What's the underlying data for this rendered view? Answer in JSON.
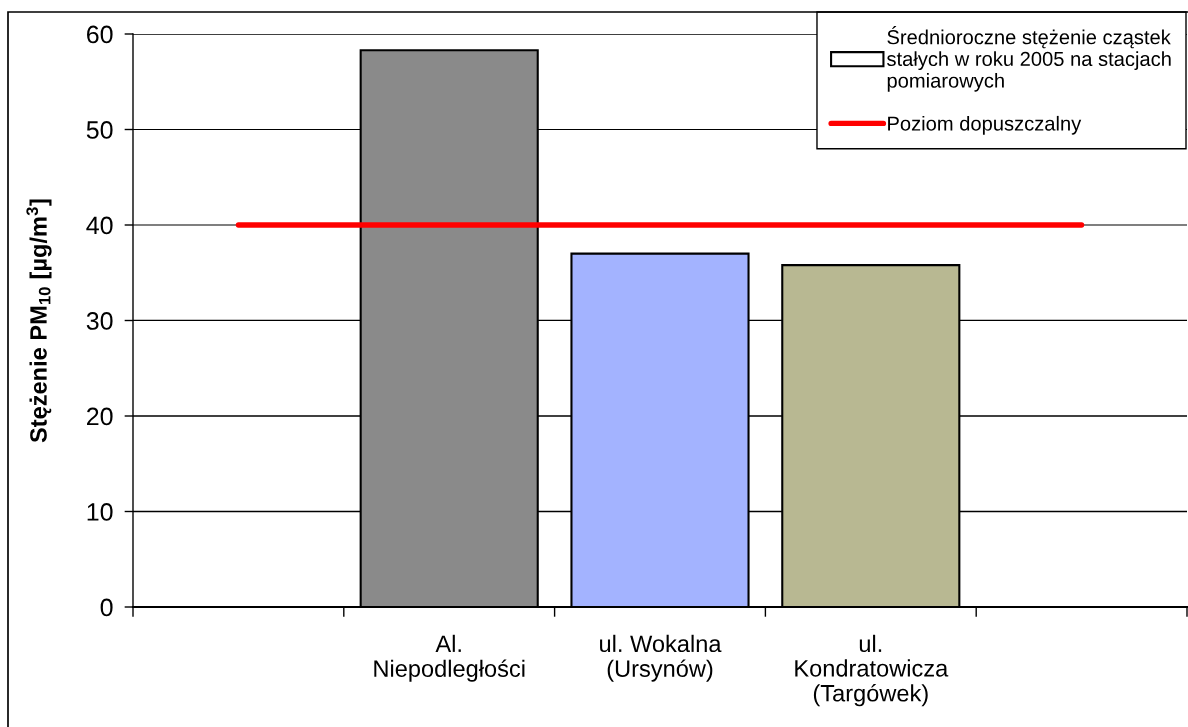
{
  "chart_data": {
    "type": "bar",
    "ylabel": "Stężenie PM$_{10}$ [µg/m$^{3}$]",
    "categories": [
      null,
      "Al.\nNiepodległości",
      "ul. Wokalna\n(Ursynów)",
      "ul.\nKondratowicza\n(Targówek)",
      null
    ],
    "series": [
      {
        "name": "Średnioroczne stężenie cząstek\nstałych w roku 2005 na stacjach\npomiarowych",
        "colors": [
          null,
          "#8a8a8a",
          "#a3b3ff",
          "#b8b892",
          null
        ],
        "values": [
          null,
          58.3,
          37.0,
          35.8,
          null
        ]
      },
      {
        "name": "Poziom dopuszczalny",
        "type": "line",
        "color": "#ff0000",
        "values": [
          40,
          40,
          40,
          40,
          40
        ]
      }
    ],
    "ylim": [
      0,
      60
    ],
    "yticks": [
      0,
      10,
      20,
      30,
      40,
      50,
      60
    ],
    "grid": "y",
    "legend": "top right"
  }
}
